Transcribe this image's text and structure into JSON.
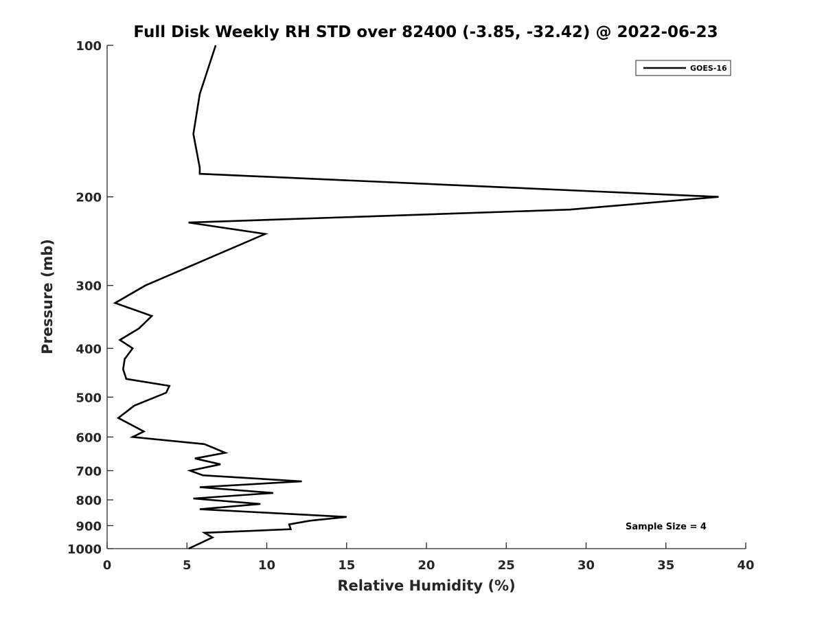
{
  "chart_data": {
    "type": "line",
    "title": "Full Disk Weekly RH STD over 82400 (-3.85, -32.42) @ 2022-06-23",
    "xlabel": "Relative Humidity (%)",
    "ylabel": "Pressure (mb)",
    "xlim": [
      0,
      40
    ],
    "ylim": [
      100,
      1000
    ],
    "y_scale": "log",
    "y_reversed": true,
    "grid": false,
    "legend_position": "top-right",
    "x_ticks": [
      0,
      5,
      10,
      15,
      20,
      25,
      30,
      35,
      40
    ],
    "y_ticks": [
      100,
      200,
      300,
      400,
      500,
      600,
      700,
      800,
      900,
      1000
    ],
    "annotation": "Sample Size = 4",
    "line_color": "#000000",
    "series": [
      {
        "name": "GOES-16",
        "points": [
          [
            6.8,
            100
          ],
          [
            5.8,
            125
          ],
          [
            5.4,
            150
          ],
          [
            5.8,
            175
          ],
          [
            5.8,
            180
          ],
          [
            38.3,
            200
          ],
          [
            29.0,
            212
          ],
          [
            5.1,
            225
          ],
          [
            9.9,
            237
          ],
          [
            2.4,
            300
          ],
          [
            0.5,
            325
          ],
          [
            2.8,
            345
          ],
          [
            2.0,
            365
          ],
          [
            0.8,
            385
          ],
          [
            1.6,
            400
          ],
          [
            1.1,
            420
          ],
          [
            1.0,
            440
          ],
          [
            1.2,
            460
          ],
          [
            3.9,
            475
          ],
          [
            3.7,
            490
          ],
          [
            1.7,
            520
          ],
          [
            0.7,
            550
          ],
          [
            2.3,
            585
          ],
          [
            1.6,
            600
          ],
          [
            6.1,
            620
          ],
          [
            7.4,
            645
          ],
          [
            5.5,
            662
          ],
          [
            7.1,
            680
          ],
          [
            5.2,
            700
          ],
          [
            6.0,
            715
          ],
          [
            12.2,
            735
          ],
          [
            5.8,
            755
          ],
          [
            10.4,
            775
          ],
          [
            5.4,
            795
          ],
          [
            9.6,
            815
          ],
          [
            5.8,
            835
          ],
          [
            15.0,
            865
          ],
          [
            12.7,
            880
          ],
          [
            11.4,
            895
          ],
          [
            11.5,
            915
          ],
          [
            6.1,
            930
          ],
          [
            6.6,
            950
          ],
          [
            5.1,
            1000
          ]
        ]
      }
    ]
  }
}
